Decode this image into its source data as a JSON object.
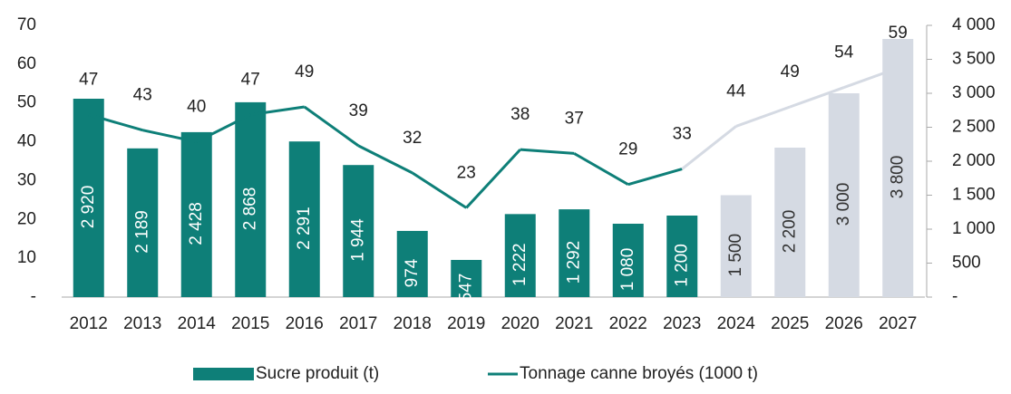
{
  "chart_data": {
    "type": "bar-line",
    "categories": [
      "2012",
      "2013",
      "2014",
      "2015",
      "2016",
      "2017",
      "2018",
      "2019",
      "2020",
      "2021",
      "2022",
      "2023",
      "2024",
      "2025",
      "2026",
      "2027"
    ],
    "series": [
      {
        "name": "Sucre produit (t)",
        "type": "bar",
        "axis": "y2",
        "color": "#0e7f78",
        "colors": [
          "#0e7f78",
          "#0e7f78",
          "#0e7f78",
          "#0e7f78",
          "#0e7f78",
          "#0e7f78",
          "#0e7f78",
          "#0e7f78",
          "#0e7f78",
          "#0e7f78",
          "#0e7f78",
          "#0e7f78",
          "#d5dae3",
          "#d5dae3",
          "#d5dae3",
          "#d5dae3"
        ],
        "values": [
          2920,
          2189,
          2428,
          2868,
          2291,
          1944,
          974,
          547,
          1222,
          1292,
          1080,
          1200,
          1500,
          2200,
          3000,
          3800
        ],
        "value_labels": [
          "2 920",
          "2 189",
          "2 428",
          "2 868",
          "2 291",
          "1 944",
          "974",
          "547",
          "1 222",
          "1 292",
          "1 080",
          "1 200",
          "1 500",
          "2 200",
          "3 000",
          "3 800"
        ]
      },
      {
        "name": "Tonnage canne broyés (1000 t)",
        "type": "line",
        "axis": "y",
        "color": "#0e7f78",
        "colors": [
          "#0e7f78",
          "#0e7f78",
          "#0e7f78",
          "#0e7f78",
          "#0e7f78",
          "#0e7f78",
          "#0e7f78",
          "#0e7f78",
          "#0e7f78",
          "#0e7f78",
          "#0e7f78",
          "#0e7f78",
          "#d5dae3",
          "#d5dae3",
          "#d5dae3",
          "#d5dae3"
        ],
        "values": [
          47,
          43,
          40,
          47,
          49,
          39,
          32,
          23,
          38,
          37,
          29,
          33,
          44,
          49,
          54,
          59
        ]
      }
    ],
    "ylim": [
      0,
      70
    ],
    "yticks": [
      {
        "value": 0,
        "label": "-"
      },
      10,
      20,
      30,
      40,
      50,
      60,
      70
    ],
    "y2lim": [
      0,
      4000
    ],
    "y2ticks": [
      {
        "value": 0,
        "label": "-"
      },
      500,
      {
        "value": 1000,
        "label": "1 000"
      },
      {
        "value": 1500,
        "label": "1 500"
      },
      {
        "value": 2000,
        "label": "2 000"
      },
      {
        "value": 2500,
        "label": "2 500"
      },
      {
        "value": 3000,
        "label": "3 000"
      },
      {
        "value": 3500,
        "label": "3 500"
      },
      {
        "value": 4000,
        "label": "4 000"
      }
    ],
    "legend": "bottom"
  }
}
